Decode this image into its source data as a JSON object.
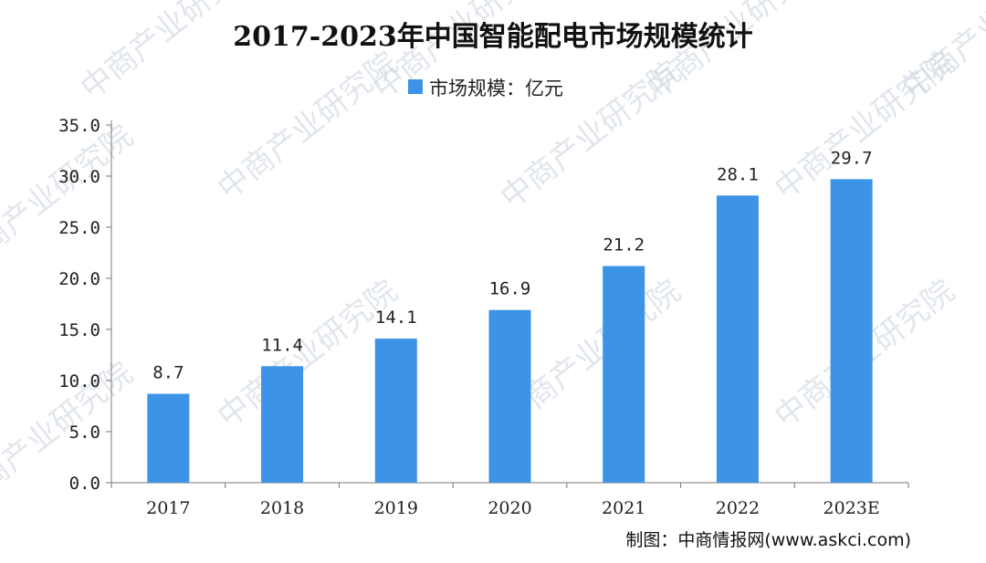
{
  "chart_data": {
    "type": "bar",
    "title": "2017-2023年中国智能配电市场规模统计",
    "categories": [
      "2017",
      "2018",
      "2019",
      "2020",
      "2021",
      "2022",
      "2023E"
    ],
    "series": [
      {
        "name": "市场规模：亿元",
        "values": [
          8.7,
          11.4,
          14.1,
          16.9,
          21.2,
          28.1,
          29.7
        ]
      }
    ],
    "data_labels": [
      "8.7",
      "11.4",
      "14.1",
      "16.9",
      "21.2",
      "28.1",
      "29.7"
    ],
    "ylim": [
      0,
      35
    ],
    "yticks": [
      0,
      5,
      10,
      15,
      20,
      25,
      30,
      35
    ],
    "ytick_labels": [
      "0.0",
      "5.0",
      "10.0",
      "15.0",
      "20.0",
      "25.0",
      "30.0",
      "35.0"
    ],
    "legend_position": "top-center",
    "grid": false,
    "bar_color": "#3d93e6"
  },
  "source": "制图：中商情报网(www.askci.com)",
  "watermark": "中商产业研究院"
}
